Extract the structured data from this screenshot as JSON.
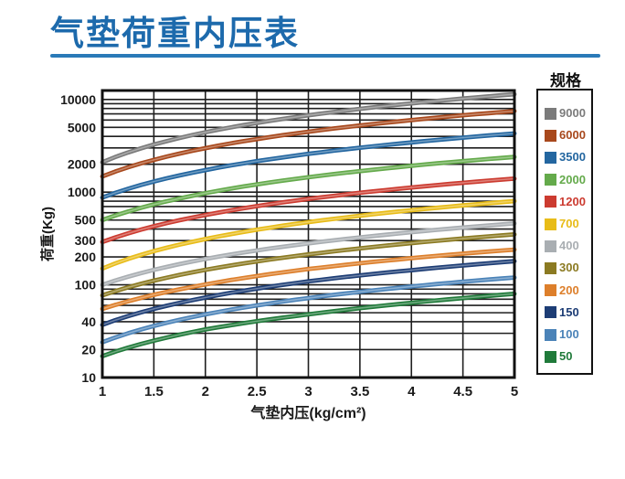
{
  "page": {
    "title": "气垫荷重内压表"
  },
  "legend": {
    "title": "规格"
  },
  "chart_data": {
    "type": "line",
    "title": "气垫荷重内压表",
    "xlabel": "气垫内压(kg/cm²)",
    "ylabel": "荷重(Kg)",
    "x_scale": "linear",
    "y_scale": "log",
    "xlim": [
      1,
      5
    ],
    "ylim": [
      10,
      12500
    ],
    "grid": true,
    "legend_position": "right",
    "x_ticks": [
      1,
      1.5,
      2,
      2.5,
      3,
      3.5,
      4,
      4.5,
      5
    ],
    "y_ticks": [
      10000,
      5000,
      2000,
      1000,
      500,
      300,
      200,
      100,
      40,
      20,
      10
    ],
    "x": [
      1,
      2,
      3,
      4,
      5
    ],
    "series": [
      {
        "name": "9000",
        "color": "#7b7b7b",
        "values": [
          2100,
          4425,
          6750,
          9075,
          11400
        ]
      },
      {
        "name": "6000",
        "color": "#a8481c",
        "values": [
          1480,
          2985,
          4490,
          5995,
          7500
        ]
      },
      {
        "name": "3500",
        "color": "#2366a0",
        "values": [
          875,
          1731,
          2588,
          3444,
          4300
        ]
      },
      {
        "name": "2000",
        "color": "#64aa4b",
        "values": [
          500,
          975,
          1450,
          1925,
          2400
        ]
      },
      {
        "name": "1200",
        "color": "#cc3b30",
        "values": [
          290,
          567,
          845,
          1122,
          1400
        ]
      },
      {
        "name": "700",
        "color": "#e8bc18",
        "values": [
          150,
          312,
          475,
          638,
          800
        ]
      },
      {
        "name": "400",
        "color": "#a9aeb2",
        "values": [
          100,
          190,
          280,
          370,
          460
        ]
      },
      {
        "name": "300",
        "color": "#8b7a22",
        "values": [
          77,
          145,
          213,
          282,
          350
        ]
      },
      {
        "name": "200",
        "color": "#dd7f2b",
        "values": [
          55,
          101,
          148,
          194,
          240
        ]
      },
      {
        "name": "150",
        "color": "#1d3d75",
        "values": [
          37,
          73,
          109,
          144,
          180
        ]
      },
      {
        "name": "100",
        "color": "#4b83b8",
        "values": [
          24,
          48,
          72,
          96,
          120
        ]
      },
      {
        "name": "50",
        "color": "#207a3a",
        "values": [
          17,
          33,
          48,
          64,
          80
        ]
      }
    ]
  }
}
